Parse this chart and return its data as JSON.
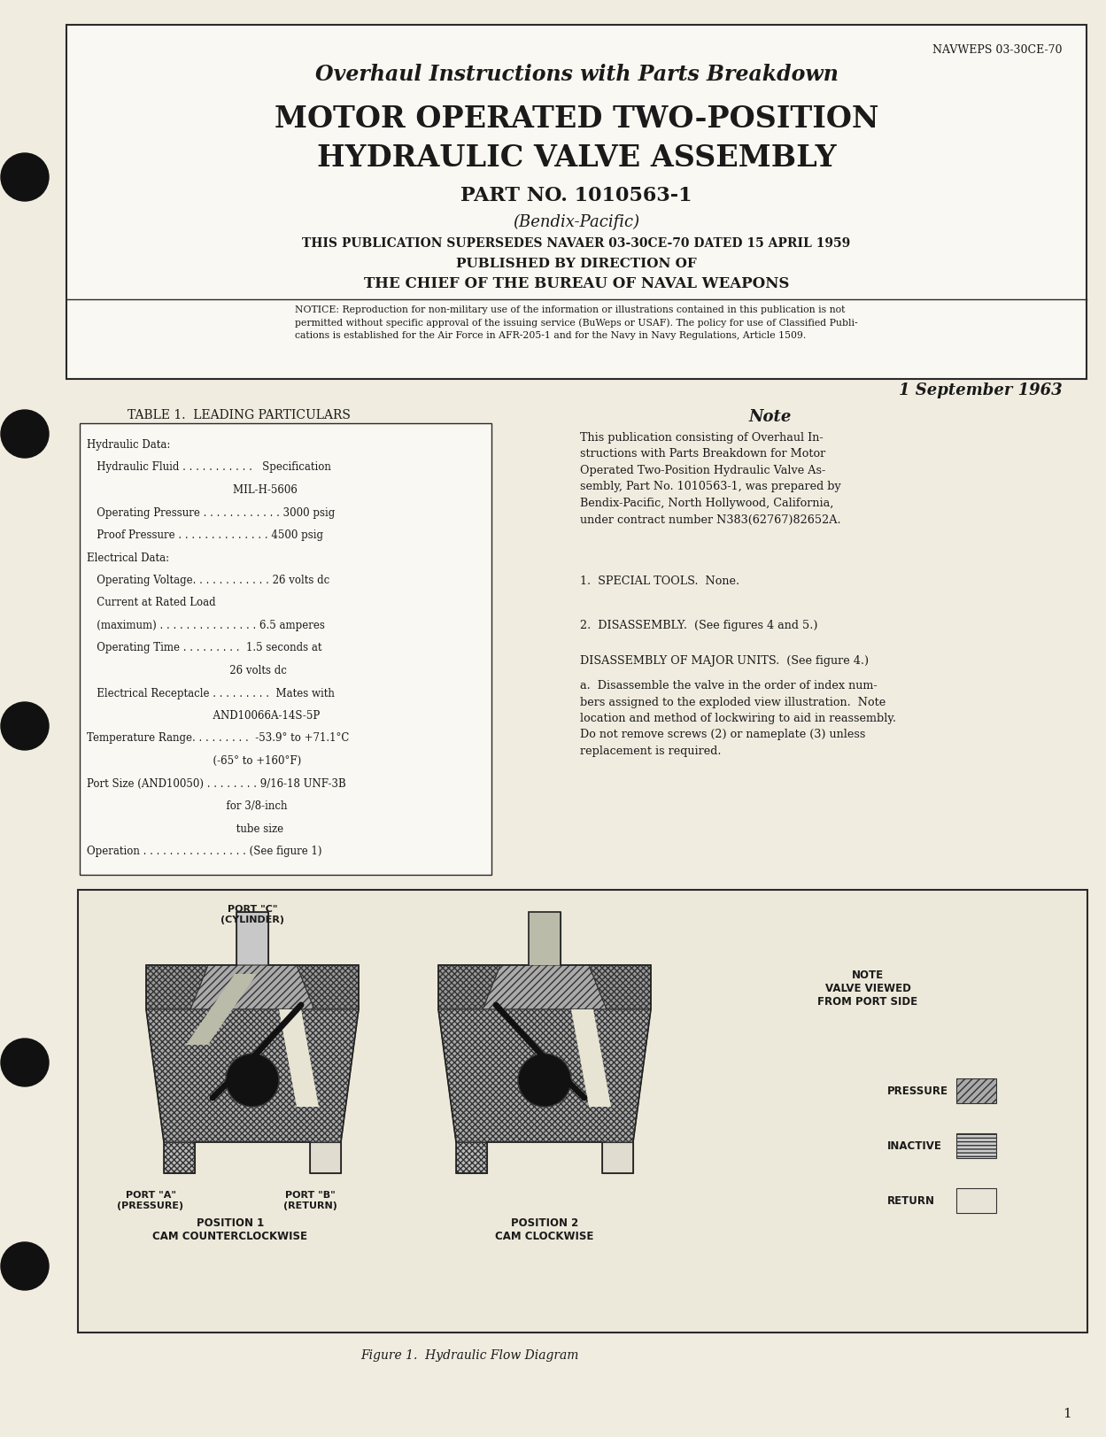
{
  "bg_color": "#f0ece0",
  "inner_bg": "#faf8f2",
  "border_color": "#2a2a2a",
  "text_color": "#1a1a1a",
  "navweps": "NAVWEPS 03-30CE-70",
  "title_line1": "Overhaul Instructions with Parts Breakdown",
  "title_line2": "MOTOR OPERATED TWO-POSITION",
  "title_line3": "HYDRAULIC VALVE ASSEMBLY",
  "title_line4": "PART NO. 1010563-1",
  "title_line5": "(Bendix-Pacific)",
  "supersedes": "THIS PUBLICATION SUPERSEDES NAVAER 03-30CE-70 DATED 15 APRIL 1959",
  "published": "PUBLISHED BY DIRECTION OF",
  "bureau": "THE CHIEF OF THE BUREAU OF NAVAL WEAPONS",
  "notice": "NOTICE: Reproduction for non-military use of the information or illustrations contained in this publication is not\npermitted without specific approval of the issuing service (BuWeps or USAF). The policy for use of Classified Publi-\ncations is established for the Air Force in AFR-205-1 and for the Navy in Navy Regulations, Article 1509.",
  "date": "1 September 1963",
  "table_title": "TABLE 1.  LEADING PARTICULARS",
  "table_lines": [
    "Hydraulic Data:",
    "   Hydraulic Fluid . . . . . . . . . . .   Specification",
    "                                            MIL-H-5606",
    "   Operating Pressure . . . . . . . . . . . . 3000 psig",
    "   Proof Pressure . . . . . . . . . . . . . . 4500 psig",
    "Electrical Data:",
    "   Operating Voltage. . . . . . . . . . . . 26 volts dc",
    "   Current at Rated Load",
    "   (maximum) . . . . . . . . . . . . . . . 6.5 amperes",
    "   Operating Time . . . . . . . . .  1.5 seconds at",
    "                                           26 volts dc",
    "   Electrical Receptacle . . . . . . . . .  Mates with",
    "                                      AND10066A-14S-5P",
    "Temperature Range. . . . . . . . .  -53.9° to +71.1°C",
    "                                      (-65° to +160°F)",
    "Port Size (AND10050) . . . . . . . . 9/16-18 UNF-3B",
    "                                          for 3/8-inch",
    "                                             tube size",
    "Operation . . . . . . . . . . . . . . . . (See figure 1)"
  ],
  "note_title": "Note",
  "note_text": "This publication consisting of Overhaul In-\nstructions with Parts Breakdown for Motor\nOperated Two-Position Hydraulic Valve As-\nsembly, Part No. 1010563-1, was prepared by\nBendix-Pacific, North Hollywood, California,\nunder contract number N383(62767)82652A.",
  "special_tools": "1.  SPECIAL TOOLS.  None.",
  "disassembly": "2.  DISASSEMBLY.  (See figures 4 and 5.)",
  "disassembly_major": "DISASSEMBLY OF MAJOR UNITS.  (See figure 4.)",
  "para_a": "a.  Disassemble the valve in the order of index num-\nbers assigned to the exploded view illustration.  Note\nlocation and method of lockwiring to aid in reassembly.\nDo not remove screws (2) or nameplate (3) unless\nreplacement is required.",
  "figure_caption": "Figure 1.  Hydraulic Flow Diagram",
  "page_number": "1",
  "fig_note1": "NOTE",
  "fig_note2": "VALVE VIEWED",
  "fig_note3": "FROM PORT SIDE",
  "fig_pressure_label": "PRESSURE",
  "fig_inactive_label": "INACTIVE",
  "fig_return_label": "RETURN",
  "fig_port_c": "PORT \"C\"",
  "fig_cylinder": "(CYLINDER)",
  "fig_port_a": "PORT \"A\"",
  "fig_pressure_port": "(PRESSURE)",
  "fig_port_b": "PORT \"B\"",
  "fig_return_port": "(RETURN)",
  "fig_pos1_line1": "POSITION 1",
  "fig_pos1_line2": "CAM COUNTERCLOCKWISE",
  "fig_pos2_line1": "POSITION 2",
  "fig_pos2_line2": "CAM CLOCKWISE"
}
